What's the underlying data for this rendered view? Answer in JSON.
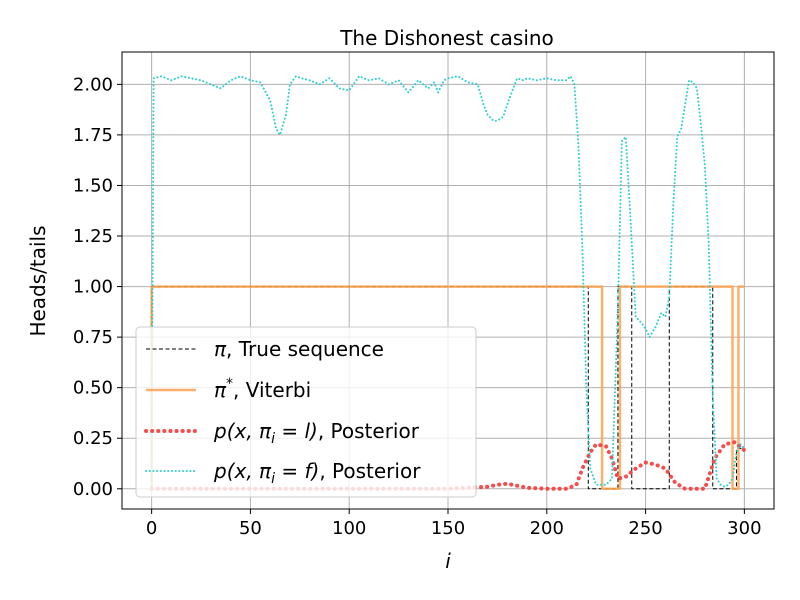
{
  "chart_data": {
    "type": "line",
    "title": "The Dishonest casino",
    "xlabel": "i",
    "ylabel": "Heads/tails",
    "xlim": [
      -15,
      315
    ],
    "ylim": [
      -0.1,
      2.16
    ],
    "xticks": [
      0,
      50,
      100,
      150,
      200,
      250,
      300
    ],
    "yticks": [
      0.0,
      0.25,
      0.5,
      0.75,
      1.0,
      1.25,
      1.5,
      1.75,
      2.0
    ],
    "xtick_labels": [
      "0",
      "50",
      "100",
      "150",
      "200",
      "250",
      "300"
    ],
    "ytick_labels": [
      "0.00",
      "0.25",
      "0.50",
      "0.75",
      "1.00",
      "1.25",
      "1.50",
      "1.75",
      "2.00"
    ],
    "grid": true,
    "legend_position": "lower-left",
    "series": [
      {
        "name": "π, True sequence",
        "legend_main": "π",
        "legend_sup": "",
        "legend_tail": ", True sequence",
        "color": "#000000",
        "style": "dashed",
        "step": true,
        "x": [
          0,
          0,
          221,
          221,
          236,
          236,
          243,
          243,
          262,
          262,
          284,
          284,
          296,
          296,
          300
        ],
        "y": [
          0,
          1,
          1,
          0,
          0,
          1,
          1,
          0,
          0,
          1,
          1,
          0,
          0,
          0.2,
          0.2
        ]
      },
      {
        "name": "π*, Viterbi",
        "legend_main": "π",
        "legend_sup": "*",
        "legend_tail": ", Viterbi",
        "color": "#FFA24F",
        "style": "solid",
        "step": true,
        "x": [
          0,
          0,
          228,
          228,
          237,
          237,
          294,
          294,
          297,
          297,
          300
        ],
        "y": [
          0,
          1,
          1,
          0,
          0,
          1,
          1,
          0,
          0,
          1,
          1
        ]
      },
      {
        "name": "p(x, πi = l), Posterior",
        "legend_math": "p(x, πi = l)",
        "legend_tail": ", Posterior",
        "color": "#F44242",
        "style": "dotted",
        "step": false,
        "x": [
          0,
          50,
          100,
          150,
          160,
          170,
          175,
          180,
          185,
          190,
          200,
          210,
          215,
          218,
          222,
          225,
          230,
          233,
          236,
          240,
          245,
          250,
          255,
          260,
          265,
          270,
          275,
          280,
          285,
          290,
          295,
          300
        ],
        "y": [
          0,
          0,
          0,
          0,
          0.005,
          0.01,
          0.02,
          0.025,
          0.015,
          0.005,
          0,
          0,
          0.02,
          0.1,
          0.18,
          0.22,
          0.21,
          0.15,
          0.05,
          0.06,
          0.1,
          0.13,
          0.12,
          0.1,
          0.03,
          0,
          0,
          0,
          0.15,
          0.22,
          0.23,
          0.19
        ]
      },
      {
        "name": "p(x, πi = f), Posterior",
        "legend_math": "p(x, πi = f)",
        "legend_tail": ", Posterior",
        "color": "#2ECFCF",
        "style": "dotted",
        "step": false,
        "x": [
          0,
          1,
          5,
          10,
          15,
          20,
          25,
          30,
          35,
          40,
          45,
          50,
          55,
          60,
          63,
          65,
          68,
          70,
          73,
          76,
          80,
          85,
          90,
          95,
          100,
          105,
          110,
          115,
          120,
          125,
          130,
          135,
          140,
          143,
          145,
          148,
          150,
          155,
          160,
          165,
          168,
          170,
          173,
          175,
          178,
          180,
          183,
          185,
          188,
          190,
          195,
          200,
          205,
          210,
          212,
          214,
          216,
          218,
          220,
          222,
          225,
          228,
          230,
          233,
          236,
          238,
          240,
          242,
          245,
          248,
          250,
          252,
          255,
          258,
          260,
          262,
          264,
          266,
          268,
          270,
          272,
          274,
          276,
          278,
          280,
          282,
          284,
          286,
          288,
          290,
          292,
          294,
          296,
          298,
          300
        ],
        "y": [
          0,
          2.03,
          2.04,
          2.02,
          2.04,
          2.03,
          2.02,
          2.0,
          1.98,
          2.02,
          2.04,
          2.02,
          2.01,
          1.92,
          1.78,
          1.75,
          1.85,
          2.0,
          2.04,
          2.03,
          2.02,
          2.0,
          2.03,
          1.98,
          1.97,
          2.04,
          2.02,
          2.03,
          2.0,
          2.02,
          1.96,
          2.02,
          1.98,
          2.01,
          1.96,
          2.02,
          2.03,
          2.04,
          2.01,
          2.0,
          1.9,
          1.85,
          1.82,
          1.82,
          1.84,
          1.9,
          1.98,
          2.03,
          2.02,
          2.03,
          2.02,
          2.03,
          2.02,
          2.02,
          2.04,
          2.0,
          1.7,
          1.2,
          0.5,
          0.1,
          0.02,
          0.02,
          0.02,
          0.05,
          0.9,
          1.72,
          1.74,
          1.4,
          0.85,
          0.82,
          0.79,
          0.75,
          0.8,
          0.87,
          0.85,
          0.95,
          1.4,
          1.74,
          1.78,
          1.9,
          2.02,
          2.01,
          1.98,
          1.8,
          1.6,
          1.2,
          0.45,
          0.05,
          0.02,
          0.01,
          0.02,
          0.05,
          0.18,
          0.22,
          0.2
        ]
      }
    ]
  }
}
